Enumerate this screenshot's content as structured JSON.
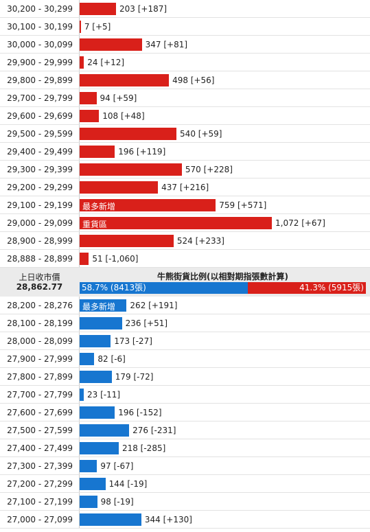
{
  "upper": {
    "color": "#d9201a",
    "rows": [
      {
        "range": "30,200 - 30,299",
        "value": 203,
        "change": "[+187]"
      },
      {
        "range": "30,100 - 30,199",
        "value": 7,
        "change": "[+5]"
      },
      {
        "range": "30,000 - 30,099",
        "value": 347,
        "change": "[+81]"
      },
      {
        "range": "29,900 - 29,999",
        "value": 24,
        "change": "[+12]"
      },
      {
        "range": "29,800 - 29,899",
        "value": 498,
        "change": "[+56]"
      },
      {
        "range": "29,700 - 29,799",
        "value": 94,
        "change": "[+59]"
      },
      {
        "range": "29,600 - 29,699",
        "value": 108,
        "change": "[+48]"
      },
      {
        "range": "29,500 - 29,599",
        "value": 540,
        "change": "[+59]"
      },
      {
        "range": "29,400 - 29,499",
        "value": 196,
        "change": "[+119]"
      },
      {
        "range": "29,300 - 29,399",
        "value": 570,
        "change": "[+228]"
      },
      {
        "range": "29,200 - 29,299",
        "value": 437,
        "change": "[+216]"
      },
      {
        "range": "29,100 - 29,199",
        "value": 759,
        "change": "[+571]",
        "tag": "最多新增"
      },
      {
        "range": "29,000 - 29,099",
        "value": 1072,
        "value_label": "1,072",
        "change": "[+67]",
        "tag": "重貨區"
      },
      {
        "range": "28,900 - 28,999",
        "value": 524,
        "change": "[+233]"
      },
      {
        "range": "28,888 - 28,899",
        "value": 51,
        "change": "[-1,060]"
      }
    ]
  },
  "middle": {
    "prev_close_label": "上日收市價",
    "prev_close": "28,862.77",
    "title": "牛熊街貨比例(以相對期指張數計算)",
    "segments": [
      {
        "value": 58.7,
        "label": "58.7% (8413張)",
        "color": "#1776d0"
      },
      {
        "value": 41.3,
        "label": "41.3% (5915張)",
        "color": "#d9201a"
      }
    ]
  },
  "lower": {
    "color": "#1776d0",
    "rows": [
      {
        "range": "28,200 - 28,276",
        "value": 262,
        "change": "[+191]",
        "tag": "最多新增"
      },
      {
        "range": "28,100 - 28,199",
        "value": 236,
        "change": "[+51]"
      },
      {
        "range": "28,000 - 28,099",
        "value": 173,
        "change": "[-27]"
      },
      {
        "range": "27,900 - 27,999",
        "value": 82,
        "change": "[-6]"
      },
      {
        "range": "27,800 - 27,899",
        "value": 179,
        "change": "[-72]"
      },
      {
        "range": "27,700 - 27,799",
        "value": 23,
        "change": "[-11]"
      },
      {
        "range": "27,600 - 27,699",
        "value": 196,
        "change": "[-152]"
      },
      {
        "range": "27,500 - 27,599",
        "value": 276,
        "change": "[-231]"
      },
      {
        "range": "27,400 - 27,499",
        "value": 218,
        "change": "[-285]"
      },
      {
        "range": "27,300 - 27,399",
        "value": 97,
        "change": "[-67]"
      },
      {
        "range": "27,200 - 27,299",
        "value": 144,
        "change": "[-19]"
      },
      {
        "range": "27,100 - 27,199",
        "value": 98,
        "change": "[-19]"
      },
      {
        "range": "27,000 - 27,099",
        "value": 344,
        "change": "[+130]"
      }
    ]
  }
}
